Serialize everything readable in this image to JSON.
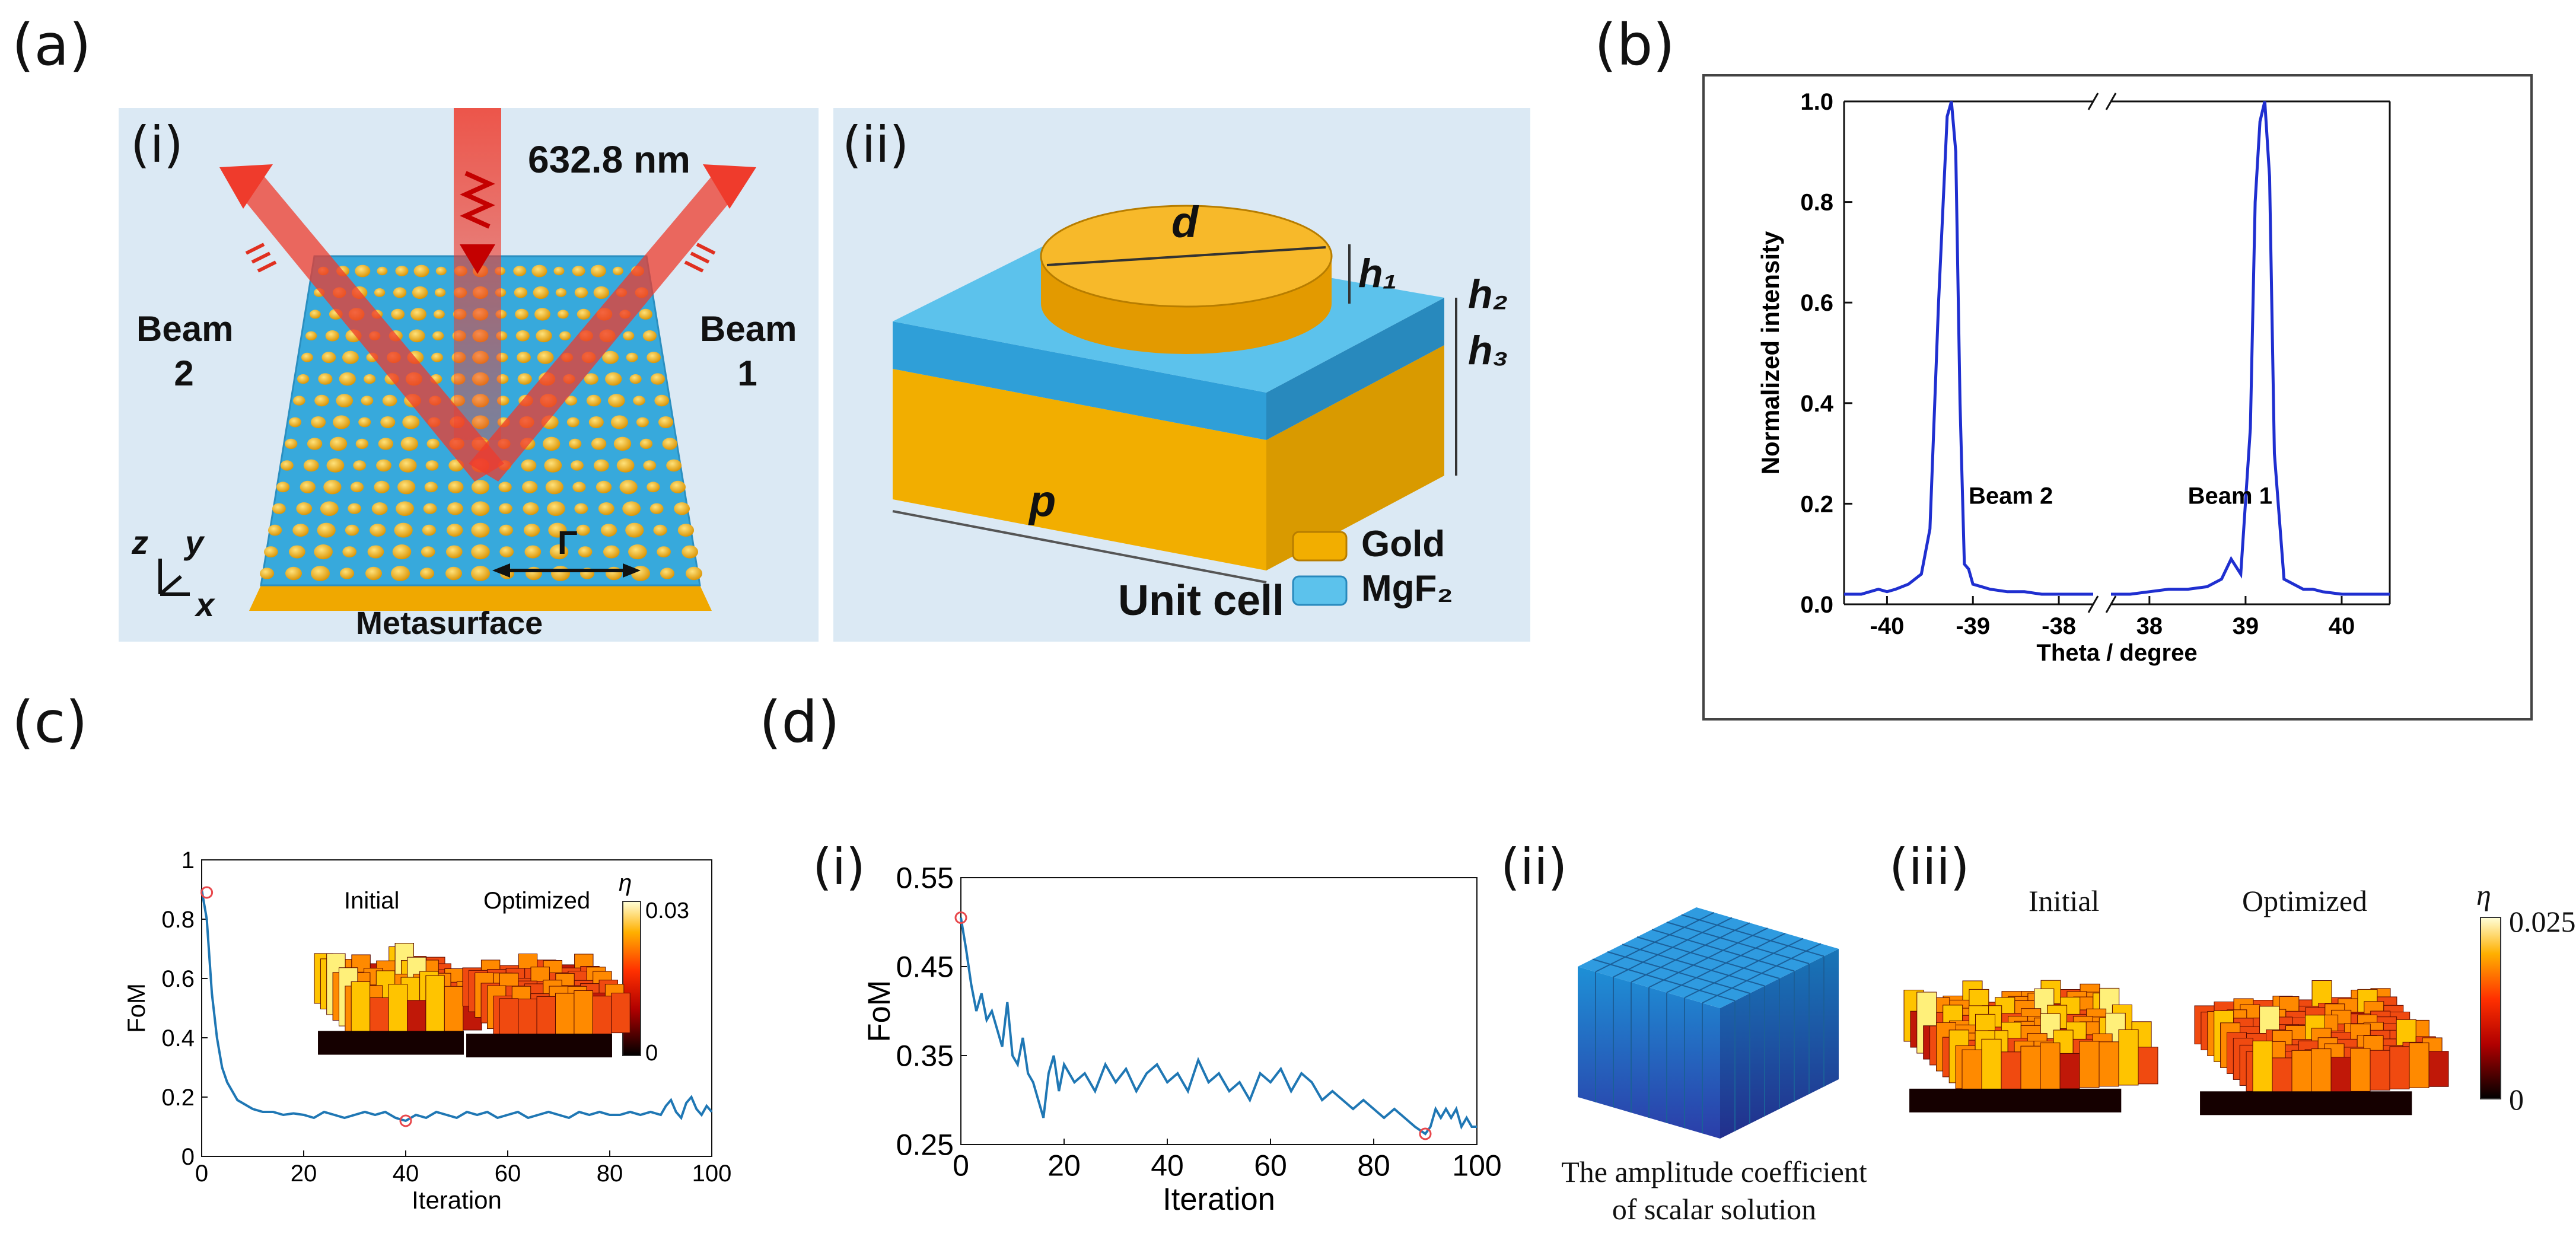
{
  "panel_labels": {
    "a": "(a)",
    "b": "(b)",
    "c": "(c)",
    "d": "(d)"
  },
  "panel_a": {
    "i": {
      "label": "(i)",
      "wavelength": "632.8 nm",
      "beam2": [
        "Beam",
        "2"
      ],
      "beam1": [
        "Beam",
        "1"
      ],
      "axes": {
        "z": "z",
        "y": "y",
        "x": "x"
      },
      "period_symbol": "Γ",
      "caption": "Metasurface"
    },
    "ii": {
      "label": "(ii)",
      "d": "d",
      "h1": "h₁",
      "h2": "h₂",
      "h3": "h₃",
      "p": "p",
      "legend": [
        "Gold",
        "MgF₂"
      ],
      "caption": "Unit cell"
    }
  },
  "colors": {
    "gold": "#f4b400",
    "mgf2": "#3aaee0",
    "beam": "#ef3b2c",
    "bg_panel": "#dbe9f4",
    "line_b": "#1f2fd0",
    "line_cd": "#1f77b4",
    "marker": "#e8474b"
  },
  "chart_data": [
    {
      "id": "b",
      "type": "line",
      "ylabel": "Normalized intensity",
      "xlabel": "Theta / degree",
      "ylim": [
        0,
        1.0
      ],
      "yticks": [
        "0.0",
        "0.2",
        "0.4",
        "0.6",
        "0.8",
        "1.0"
      ],
      "left_xticks": [
        "-40",
        "-39",
        "-38"
      ],
      "right_xticks": [
        "38",
        "39",
        "40"
      ],
      "annotations": [
        "Beam 2",
        "Beam 1"
      ],
      "left_x": [
        -40.5,
        -40.3,
        -40.1,
        -40.0,
        -39.9,
        -39.75,
        -39.6,
        -39.5,
        -39.4,
        -39.3,
        -39.25,
        -39.2,
        -39.15,
        -39.1,
        -39.05,
        -39.0,
        -38.9,
        -38.8,
        -38.6,
        -38.4,
        -38.2,
        -38.0,
        -37.8,
        -37.6
      ],
      "left_y": [
        0.02,
        0.02,
        0.03,
        0.025,
        0.03,
        0.04,
        0.06,
        0.15,
        0.6,
        0.97,
        1.0,
        0.9,
        0.4,
        0.08,
        0.07,
        0.04,
        0.035,
        0.03,
        0.025,
        0.025,
        0.02,
        0.02,
        0.02,
        0.02
      ],
      "right_x": [
        37.6,
        37.8,
        38.0,
        38.2,
        38.4,
        38.6,
        38.75,
        38.85,
        38.95,
        39.05,
        39.1,
        39.15,
        39.2,
        39.25,
        39.3,
        39.4,
        39.5,
        39.6,
        39.7,
        39.8,
        40.0,
        40.2,
        40.5
      ],
      "right_y": [
        0.02,
        0.02,
        0.025,
        0.03,
        0.03,
        0.035,
        0.05,
        0.09,
        0.06,
        0.35,
        0.8,
        0.96,
        1.0,
        0.85,
        0.3,
        0.05,
        0.04,
        0.03,
        0.03,
        0.025,
        0.02,
        0.02,
        0.02
      ]
    },
    {
      "id": "c",
      "type": "line",
      "ylabel": "FoM",
      "xlabel": "Iteration",
      "xlim": [
        0,
        100
      ],
      "ylim": [
        0,
        1
      ],
      "xticks": [
        "0",
        "20",
        "40",
        "60",
        "80",
        "100"
      ],
      "yticks": [
        "0",
        "0.2",
        "0.4",
        "0.6",
        "0.8",
        "1"
      ],
      "x": [
        0,
        1,
        2,
        3,
        4,
        5,
        6,
        7,
        8,
        9,
        10,
        12,
        14,
        16,
        18,
        20,
        22,
        24,
        26,
        28,
        30,
        32,
        34,
        36,
        38,
        40,
        42,
        44,
        46,
        48,
        50,
        52,
        54,
        56,
        58,
        60,
        62,
        64,
        66,
        68,
        70,
        72,
        74,
        76,
        78,
        80,
        82,
        84,
        86,
        88,
        90,
        91,
        92,
        93,
        94,
        95,
        96,
        97,
        98,
        99,
        100
      ],
      "y": [
        0.9,
        0.8,
        0.55,
        0.4,
        0.3,
        0.25,
        0.22,
        0.19,
        0.18,
        0.17,
        0.16,
        0.15,
        0.15,
        0.14,
        0.145,
        0.14,
        0.13,
        0.15,
        0.14,
        0.13,
        0.14,
        0.15,
        0.14,
        0.15,
        0.13,
        0.12,
        0.14,
        0.13,
        0.15,
        0.14,
        0.13,
        0.15,
        0.14,
        0.15,
        0.13,
        0.14,
        0.15,
        0.13,
        0.14,
        0.15,
        0.14,
        0.13,
        0.15,
        0.14,
        0.15,
        0.14,
        0.14,
        0.15,
        0.14,
        0.15,
        0.14,
        0.17,
        0.19,
        0.15,
        0.13,
        0.18,
        0.2,
        0.16,
        0.14,
        0.17,
        0.15
      ],
      "markers": [
        {
          "x": 1,
          "y": 0.89
        },
        {
          "x": 40,
          "y": 0.12
        }
      ],
      "insets": {
        "initial": "Initial",
        "optimized": "Optimized",
        "cbar_symbol": "η",
        "cbar_max": "0.03",
        "cbar_min": "0"
      }
    },
    {
      "id": "d_i",
      "type": "line",
      "label": "(i)",
      "ylabel": "FoM",
      "xlabel": "Iteration",
      "xlim": [
        0,
        100
      ],
      "ylim": [
        0.25,
        0.55
      ],
      "xticks": [
        "0",
        "20",
        "40",
        "60",
        "80",
        "100"
      ],
      "yticks": [
        "0.25",
        "0.35",
        "0.45",
        "0.55"
      ],
      "x": [
        0,
        1,
        2,
        3,
        4,
        5,
        6,
        7,
        8,
        9,
        10,
        11,
        12,
        13,
        14,
        15,
        16,
        17,
        18,
        19,
        20,
        22,
        24,
        26,
        28,
        30,
        32,
        34,
        36,
        38,
        40,
        42,
        44,
        46,
        48,
        50,
        52,
        54,
        56,
        58,
        60,
        62,
        64,
        66,
        68,
        70,
        72,
        74,
        76,
        78,
        80,
        82,
        84,
        86,
        88,
        90,
        91,
        92,
        93,
        94,
        95,
        96,
        97,
        98,
        99,
        100
      ],
      "y": [
        0.505,
        0.47,
        0.43,
        0.4,
        0.42,
        0.39,
        0.4,
        0.38,
        0.36,
        0.41,
        0.35,
        0.34,
        0.37,
        0.33,
        0.32,
        0.3,
        0.28,
        0.33,
        0.35,
        0.31,
        0.34,
        0.32,
        0.33,
        0.31,
        0.34,
        0.32,
        0.335,
        0.31,
        0.33,
        0.34,
        0.32,
        0.33,
        0.31,
        0.345,
        0.32,
        0.33,
        0.31,
        0.32,
        0.3,
        0.33,
        0.32,
        0.335,
        0.31,
        0.33,
        0.32,
        0.3,
        0.31,
        0.3,
        0.29,
        0.3,
        0.29,
        0.28,
        0.29,
        0.28,
        0.27,
        0.262,
        0.27,
        0.29,
        0.28,
        0.29,
        0.28,
        0.29,
        0.27,
        0.28,
        0.27,
        0.27
      ],
      "markers": [
        {
          "x": 0,
          "y": 0.505
        },
        {
          "x": 90,
          "y": 0.262
        }
      ]
    }
  ],
  "panel_d": {
    "ii": {
      "label": "(ii)",
      "caption": [
        "The amplitude coefficient",
        "of scalar solution"
      ]
    },
    "iii": {
      "label": "(iii)",
      "initial": "Initial",
      "optimized": "Optimized",
      "cbar_symbol": "η",
      "cbar_max": "0.025",
      "cbar_min": "0"
    }
  }
}
